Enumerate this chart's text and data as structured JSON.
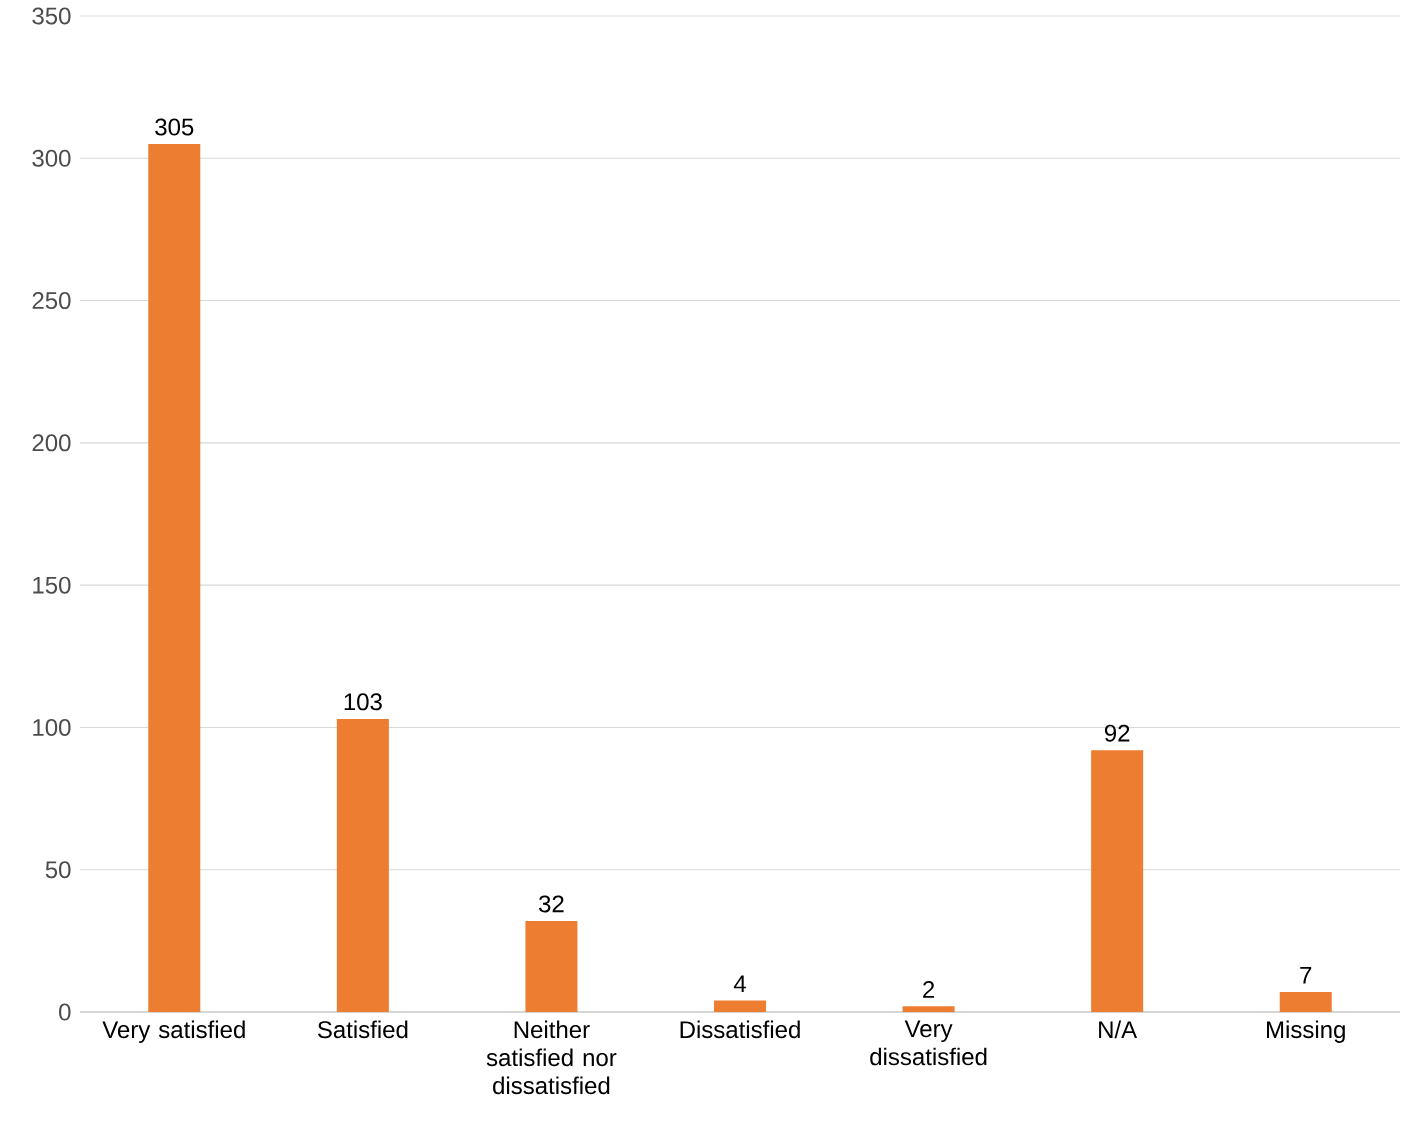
{
  "chart_data": {
    "type": "bar",
    "categories": [
      "Very satisfied",
      "Satisfied",
      "Neither satisfied nor dissatisfied",
      "Dissatisfied",
      "Very dissatisfied",
      "N/A",
      "Missing"
    ],
    "values": [
      305,
      103,
      32,
      4,
      2,
      92,
      7
    ],
    "color": "#ed7d31",
    "ylim": [
      0,
      350
    ],
    "yticks": [
      0,
      50,
      100,
      150,
      200,
      250,
      300,
      350
    ],
    "grid": "y",
    "data_labels": true
  }
}
